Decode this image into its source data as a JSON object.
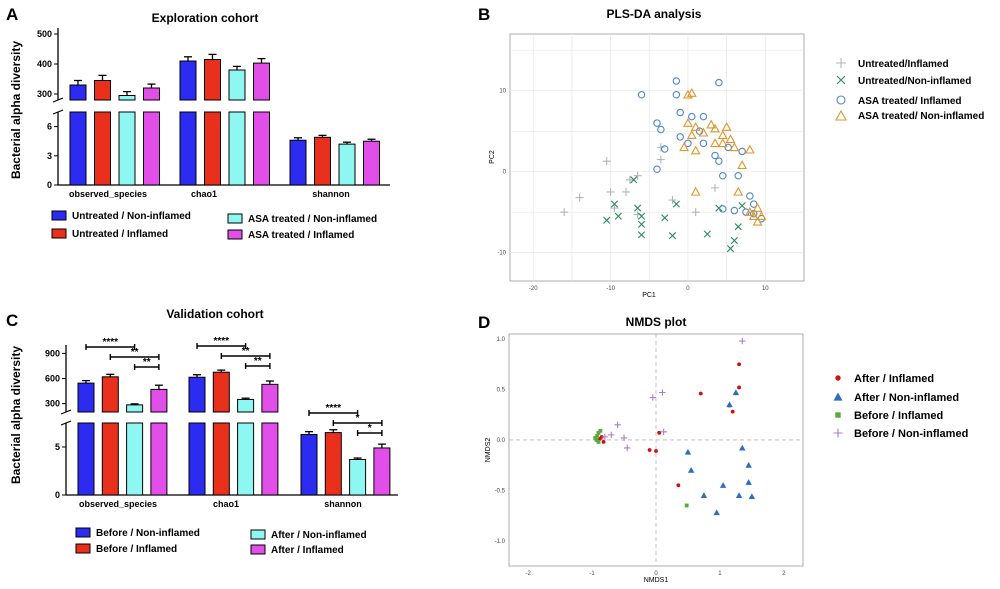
{
  "colors": {
    "blue": "#2b2bf2",
    "red": "#e8301d",
    "cyan": "#8ff7f2",
    "magenta": "#e24fe8",
    "untreated_inflamed": "#b4b4b4",
    "untreated_noninflamed": "#2a8a5a",
    "asa_inflamed": "#4f88cc",
    "asa_noninflamed": "#e0962a",
    "nmds_after_inflamed": "#cc1111",
    "nmds_after_noninflamed": "#2e6cc2",
    "nmds_before_inflamed": "#5aaa3a",
    "nmds_before_noninflamed": "#b07ad0"
  },
  "panel_letters": {
    "a": "A",
    "b": "B",
    "c": "C",
    "d": "D"
  },
  "chart_data": [
    {
      "type": "bar",
      "panel": "A",
      "title": "Exploration cohort",
      "ylabel": "Bacterial alpha diversity",
      "categories": [
        "observed_species",
        "chao1",
        "shannon"
      ],
      "upper_ticks": [
        "300",
        "400",
        "500"
      ],
      "lower_ticks": [
        "0",
        "3",
        "6"
      ],
      "ylim_upper": [
        280,
        520
      ],
      "ylim_lower": [
        0,
        7.5
      ],
      "series": [
        {
          "name": "Untreated / Non-inflamed",
          "color_key": "blue",
          "values": [
            330,
            410,
            4.6
          ],
          "errors": [
            15,
            14,
            0.25
          ]
        },
        {
          "name": "Untreated / Inflamed",
          "color_key": "red",
          "values": [
            345,
            415,
            4.9
          ],
          "errors": [
            17,
            17,
            0.2
          ]
        },
        {
          "name": "ASA treated / Non-inflamed",
          "color_key": "cyan",
          "values": [
            295,
            380,
            4.2
          ],
          "errors": [
            13,
            12,
            0.2
          ]
        },
        {
          "name": "ASA treated / Inflamed",
          "color_key": "magenta",
          "values": [
            320,
            403,
            4.5
          ],
          "errors": [
            13,
            15,
            0.2
          ]
        }
      ]
    },
    {
      "type": "scatter",
      "panel": "B",
      "title": "PLS-DA analysis",
      "xlabel": "PC1",
      "ylabel": "PC2",
      "xticks": [
        "-20",
        "-10",
        "0",
        "10"
      ],
      "yticks": [
        "10",
        "0",
        "-10"
      ],
      "xlim": [
        -23,
        15
      ],
      "ylim": [
        -13.5,
        17
      ],
      "series": [
        {
          "name": "Untreated/Inflamed",
          "marker": "plus",
          "color_key": "untreated_inflamed",
          "points": [
            [
              -16,
              -5
            ],
            [
              -14,
              -3.2
            ],
            [
              -10.5,
              1.3
            ],
            [
              -10,
              -2.5
            ],
            [
              -9.5,
              -4.5
            ],
            [
              -8,
              -2.5
            ],
            [
              -7.5,
              -1
            ],
            [
              -6.5,
              -5.3
            ],
            [
              -6.5,
              -0.5
            ],
            [
              -3.5,
              1.5
            ],
            [
              -3.5,
              3
            ],
            [
              -2,
              -3.5
            ],
            [
              1,
              -5
            ],
            [
              3.5,
              -2
            ]
          ]
        },
        {
          "name": "Untreated/Non-inflamed",
          "marker": "x",
          "color_key": "untreated_noninflamed",
          "points": [
            [
              -10.5,
              -6
            ],
            [
              -9.5,
              -4
            ],
            [
              -9,
              -5.5
            ],
            [
              -7,
              -1
            ],
            [
              -6.5,
              -4.5
            ],
            [
              -6,
              -5.5
            ],
            [
              -6,
              -6.5
            ],
            [
              -6,
              -7.8
            ],
            [
              -3,
              -5.7
            ],
            [
              -2,
              -7.9
            ],
            [
              -1.5,
              -4
            ],
            [
              2.5,
              -7.7
            ],
            [
              4,
              -4.5
            ],
            [
              5.5,
              -9.5
            ],
            [
              6,
              -8.5
            ],
            [
              6.5,
              -6.8
            ],
            [
              7,
              -4.2
            ]
          ]
        },
        {
          "name": "ASA treated/ Inflamed",
          "marker": "circle",
          "color_key": "asa_inflamed",
          "points": [
            [
              -6,
              9.5
            ],
            [
              -4,
              6
            ],
            [
              -3.5,
              5.2
            ],
            [
              -1.5,
              11.2
            ],
            [
              -1.5,
              9.5
            ],
            [
              -1,
              7.3
            ],
            [
              -3,
              2.8
            ],
            [
              -4,
              0.3
            ],
            [
              -1,
              4.3
            ],
            [
              0,
              3.5
            ],
            [
              0.5,
              6.8
            ],
            [
              1.5,
              5
            ],
            [
              2,
              6.8
            ],
            [
              2,
              3.5
            ],
            [
              4,
              11
            ],
            [
              4,
              1.3
            ],
            [
              4.5,
              -0.5
            ],
            [
              4.5,
              -4.6
            ],
            [
              5.2,
              3
            ],
            [
              6,
              -4.8
            ],
            [
              6.5,
              -0.5
            ],
            [
              7,
              2.5
            ],
            [
              7.5,
              -5
            ],
            [
              8,
              -3
            ],
            [
              8.5,
              -4
            ],
            [
              8.5,
              -5.2
            ],
            [
              9.5,
              -5.8
            ],
            [
              3.5,
              2
            ]
          ]
        },
        {
          "name": "ASA treated/ Non-inflamed",
          "marker": "triangle",
          "color_key": "asa_noninflamed",
          "points": [
            [
              0,
              9.5
            ],
            [
              0.5,
              9.7
            ],
            [
              0,
              6
            ],
            [
              0.5,
              4.5
            ],
            [
              1,
              5.5
            ],
            [
              1,
              2.6
            ],
            [
              -0.5,
              3
            ],
            [
              2,
              4.8
            ],
            [
              3.5,
              5.3
            ],
            [
              4.5,
              4.5
            ],
            [
              5,
              5.5
            ],
            [
              4.5,
              3.5
            ],
            [
              5.5,
              4
            ],
            [
              3,
              5.8
            ],
            [
              3.5,
              3.5
            ],
            [
              6,
              3
            ],
            [
              7,
              0.8
            ],
            [
              8,
              2.7
            ],
            [
              8,
              -5
            ],
            [
              8.5,
              -5.5
            ],
            [
              9,
              -4.5
            ],
            [
              9.5,
              -5.5
            ],
            [
              9,
              -6.2
            ],
            [
              1,
              -2.5
            ],
            [
              6.5,
              -2.5
            ]
          ]
        }
      ]
    },
    {
      "type": "bar",
      "panel": "C",
      "title": "Validation cohort",
      "ylabel": "Bacterial alpha diversity",
      "categories": [
        "observed_species",
        "chao1",
        "shannon"
      ],
      "upper_ticks": [
        "300",
        "600",
        "900"
      ],
      "lower_ticks": [
        "0",
        "5"
      ],
      "ylim_upper": [
        200,
        1000
      ],
      "ylim_lower": [
        0,
        7.5
      ],
      "series": [
        {
          "name": "Before / Non-inflamed",
          "color_key": "blue",
          "values": [
            545,
            615,
            6.3
          ],
          "errors": [
            30,
            30,
            0.3
          ]
        },
        {
          "name": "Before / Inflamed",
          "color_key": "red",
          "values": [
            620,
            675,
            6.5
          ],
          "errors": [
            30,
            25,
            0.3
          ]
        },
        {
          "name": "After / Non-inflamed",
          "color_key": "cyan",
          "values": [
            285,
            350,
            3.7
          ],
          "errors": [
            12,
            15,
            0.15
          ]
        },
        {
          "name": "After / Inflamed",
          "color_key": "magenta",
          "values": [
            470,
            530,
            4.9
          ],
          "errors": [
            50,
            40,
            0.4
          ]
        }
      ],
      "significance": [
        {
          "group": 0,
          "from": 0,
          "to": 2,
          "label": "****",
          "level": 1
        },
        {
          "group": 0,
          "from": 1,
          "to": 3,
          "label": "**",
          "level": 2
        },
        {
          "group": 0,
          "from": 2,
          "to": 3,
          "label": "**",
          "level": 3
        },
        {
          "group": 1,
          "from": 0,
          "to": 2,
          "label": "****",
          "level": 1
        },
        {
          "group": 1,
          "from": 1,
          "to": 3,
          "label": "**",
          "level": 2
        },
        {
          "group": 1,
          "from": 2,
          "to": 3,
          "label": "**",
          "level": 3
        },
        {
          "group": 2,
          "from": 0,
          "to": 2,
          "label": "****",
          "level": 1
        },
        {
          "group": 2,
          "from": 1,
          "to": 3,
          "label": "*",
          "level": 2
        },
        {
          "group": 2,
          "from": 2,
          "to": 3,
          "label": "*",
          "level": 3
        }
      ]
    },
    {
      "type": "scatter",
      "panel": "D",
      "title": "NMDS plot",
      "xlabel": "NMDS1",
      "ylabel": "NMDS2",
      "xticks": [
        "-2",
        "-1",
        "0",
        "1",
        "2"
      ],
      "yticks": [
        "1.0",
        "0.5",
        "0.0",
        "-0.5",
        "-1.0"
      ],
      "xlim": [
        -2.3,
        2.3
      ],
      "ylim": [
        -1.25,
        1.05
      ],
      "series": [
        {
          "name": "After / Inflamed",
          "marker": "dot",
          "color_key": "nmds_after_inflamed",
          "points": [
            [
              -0.85,
              0.03
            ],
            [
              -0.1,
              -0.1
            ],
            [
              0,
              -0.11
            ],
            [
              0.05,
              0.07
            ],
            [
              0.35,
              -0.45
            ],
            [
              0.7,
              0.46
            ],
            [
              1.15,
              0.34
            ],
            [
              1.2,
              0.28
            ],
            [
              1.3,
              0.75
            ],
            [
              1.3,
              0.52
            ],
            [
              -0.88,
              0.01
            ],
            [
              -0.82,
              -0.02
            ]
          ]
        },
        {
          "name": "After / Non-inflamed",
          "marker": "triangle",
          "color_key": "nmds_after_noninflamed",
          "points": [
            [
              0.5,
              -0.12
            ],
            [
              0.55,
              -0.3
            ],
            [
              0.75,
              -0.55
            ],
            [
              0.95,
              -0.72
            ],
            [
              1.05,
              -0.45
            ],
            [
              1.15,
              0.35
            ],
            [
              1.25,
              0.47
            ],
            [
              1.35,
              -0.08
            ],
            [
              1.3,
              -0.55
            ],
            [
              1.45,
              -0.25
            ],
            [
              1.45,
              -0.42
            ],
            [
              1.5,
              -0.56
            ]
          ]
        },
        {
          "name": "Before / Inflamed",
          "marker": "square",
          "color_key": "nmds_before_inflamed",
          "points": [
            [
              -0.95,
              0.02
            ],
            [
              -0.92,
              0.04
            ],
            [
              -0.9,
              0.07
            ],
            [
              -0.87,
              0.09
            ],
            [
              -0.93,
              0.0
            ],
            [
              -0.9,
              -0.02
            ],
            [
              0.48,
              -0.65
            ]
          ]
        },
        {
          "name": "Before / Non-inflamed",
          "marker": "plus",
          "color_key": "nmds_before_noninflamed",
          "points": [
            [
              -0.5,
              0.02
            ],
            [
              -0.45,
              -0.08
            ],
            [
              -0.7,
              0.05
            ],
            [
              -0.6,
              0.15
            ],
            [
              -0.05,
              0.42
            ],
            [
              0.1,
              0.47
            ],
            [
              0.12,
              0.08
            ],
            [
              1.35,
              0.98
            ],
            [
              -0.8,
              0.03
            ]
          ]
        }
      ]
    }
  ],
  "legends": {
    "a": [
      "Untreated / Non-inflamed",
      "Untreated / Inflamed",
      "ASA treated / Non-inflamed",
      "ASA treated / Inflamed"
    ],
    "c": [
      "Before / Non-inflamed",
      "Before / Inflamed",
      "After / Non-inflamed",
      "After / Inflamed"
    ]
  }
}
